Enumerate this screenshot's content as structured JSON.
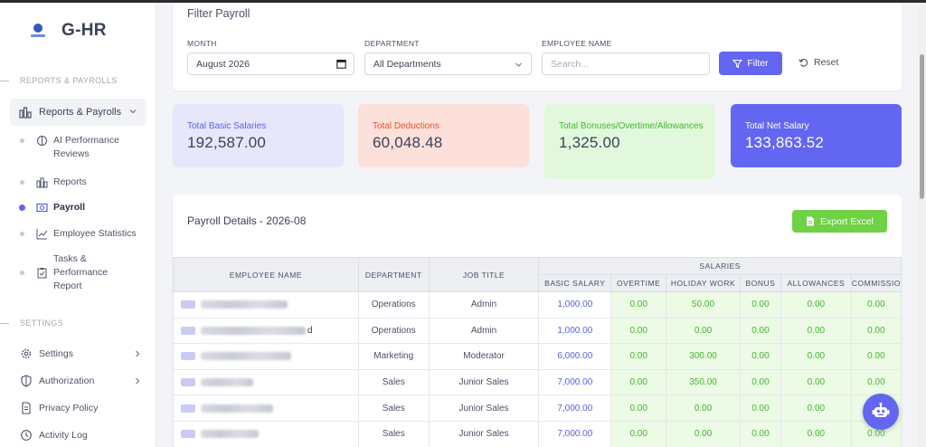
{
  "brand": {
    "name": "G-HR"
  },
  "sidebar": {
    "section_reports": "REPORTS & PAYROLLS",
    "parent_label": "Reports & Payrolls",
    "sub_items": [
      {
        "label": "AI Performance Reviews",
        "icon": "brain-icon"
      },
      {
        "label": "Reports",
        "icon": "chart-bars-icon"
      },
      {
        "label": "Payroll",
        "icon": "money-icon",
        "active": true
      },
      {
        "label": "Employee Statistics",
        "icon": "line-chart-icon"
      },
      {
        "label": "Tasks & Performance Report",
        "icon": "clipboard-icon"
      }
    ],
    "section_settings": "SETTINGS",
    "settings_items": [
      {
        "label": "Settings",
        "icon": "gear-icon",
        "has_children": true
      },
      {
        "label": "Authorization",
        "icon": "shield-icon",
        "has_children": true
      },
      {
        "label": "Privacy Policy",
        "icon": "document-icon",
        "has_children": false
      },
      {
        "label": "Activity Log",
        "icon": "history-icon",
        "has_children": false
      }
    ]
  },
  "filter": {
    "title": "Filter Payroll",
    "month_label": "MONTH",
    "month_value": "August 2026",
    "department_label": "DEPARTMENT",
    "department_value": "All Departments",
    "employee_label": "EMPLOYEE NAME",
    "employee_placeholder": "Search...",
    "filter_button": "Filter",
    "reset_button": "Reset"
  },
  "stats": [
    {
      "label": "Total Basic Salaries",
      "value": "192,587.00"
    },
    {
      "label": "Total Deductions",
      "value": "60,048.48"
    },
    {
      "label": "Total Bonuses/Overtime/Allowances",
      "value": "1,325.00"
    },
    {
      "label": "Total Net Salary",
      "value": "133,863.52"
    }
  ],
  "payroll": {
    "title": "Payroll Details - 2026-08",
    "export_button": "Export Excel",
    "headers": {
      "employee_name": "EMPLOYEE NAME",
      "department": "DEPARTMENT",
      "job_title": "JOB TITLE",
      "salaries": "SALARIES",
      "basic_salary": "BASIC SALARY",
      "overtime": "OVERTIME",
      "holiday_work": "HOLIDAY WORK",
      "bonus": "BONUS",
      "allowances": "ALLOWANCES",
      "commission": "COMMISSIO"
    },
    "rows": [
      {
        "name_tail": "",
        "department": "Operations",
        "job_title": "Admin",
        "basic_salary": "1,000.00",
        "overtime": "0.00",
        "holiday_work": "50.00",
        "bonus": "0.00",
        "allowances": "0.00",
        "commission": "0.00"
      },
      {
        "name_tail": "d",
        "department": "Operations",
        "job_title": "Admin",
        "basic_salary": "1,000.00",
        "overtime": "0.00",
        "holiday_work": "0.00",
        "bonus": "0.00",
        "allowances": "0.00",
        "commission": "0.00"
      },
      {
        "name_tail": "",
        "department": "Marketing",
        "job_title": "Moderator",
        "basic_salary": "6,000.00",
        "overtime": "0.00",
        "holiday_work": "300.00",
        "bonus": "0.00",
        "allowances": "0.00",
        "commission": "0.00"
      },
      {
        "name_tail": "",
        "department": "Sales",
        "job_title": "Junior Sales",
        "basic_salary": "7,000.00",
        "overtime": "0.00",
        "holiday_work": "350.00",
        "bonus": "0.00",
        "allowances": "0.00",
        "commission": "0.00"
      },
      {
        "name_tail": "",
        "department": "Sales",
        "job_title": "Junior Sales",
        "basic_salary": "7,000.00",
        "overtime": "0.00",
        "holiday_work": "0.00",
        "bonus": "0.00",
        "allowances": "0.00",
        "commission": "0.00"
      },
      {
        "name_tail": "",
        "department": "Sales",
        "job_title": "Junior Sales",
        "basic_salary": "7,000.00",
        "overtime": "0.00",
        "holiday_work": "0.00",
        "bonus": "0.00",
        "allowances": "0.00",
        "commission": "0.00"
      }
    ]
  },
  "colors": {
    "accent": "#6366f1",
    "success": "#6fd245",
    "danger": "#e4522f"
  }
}
